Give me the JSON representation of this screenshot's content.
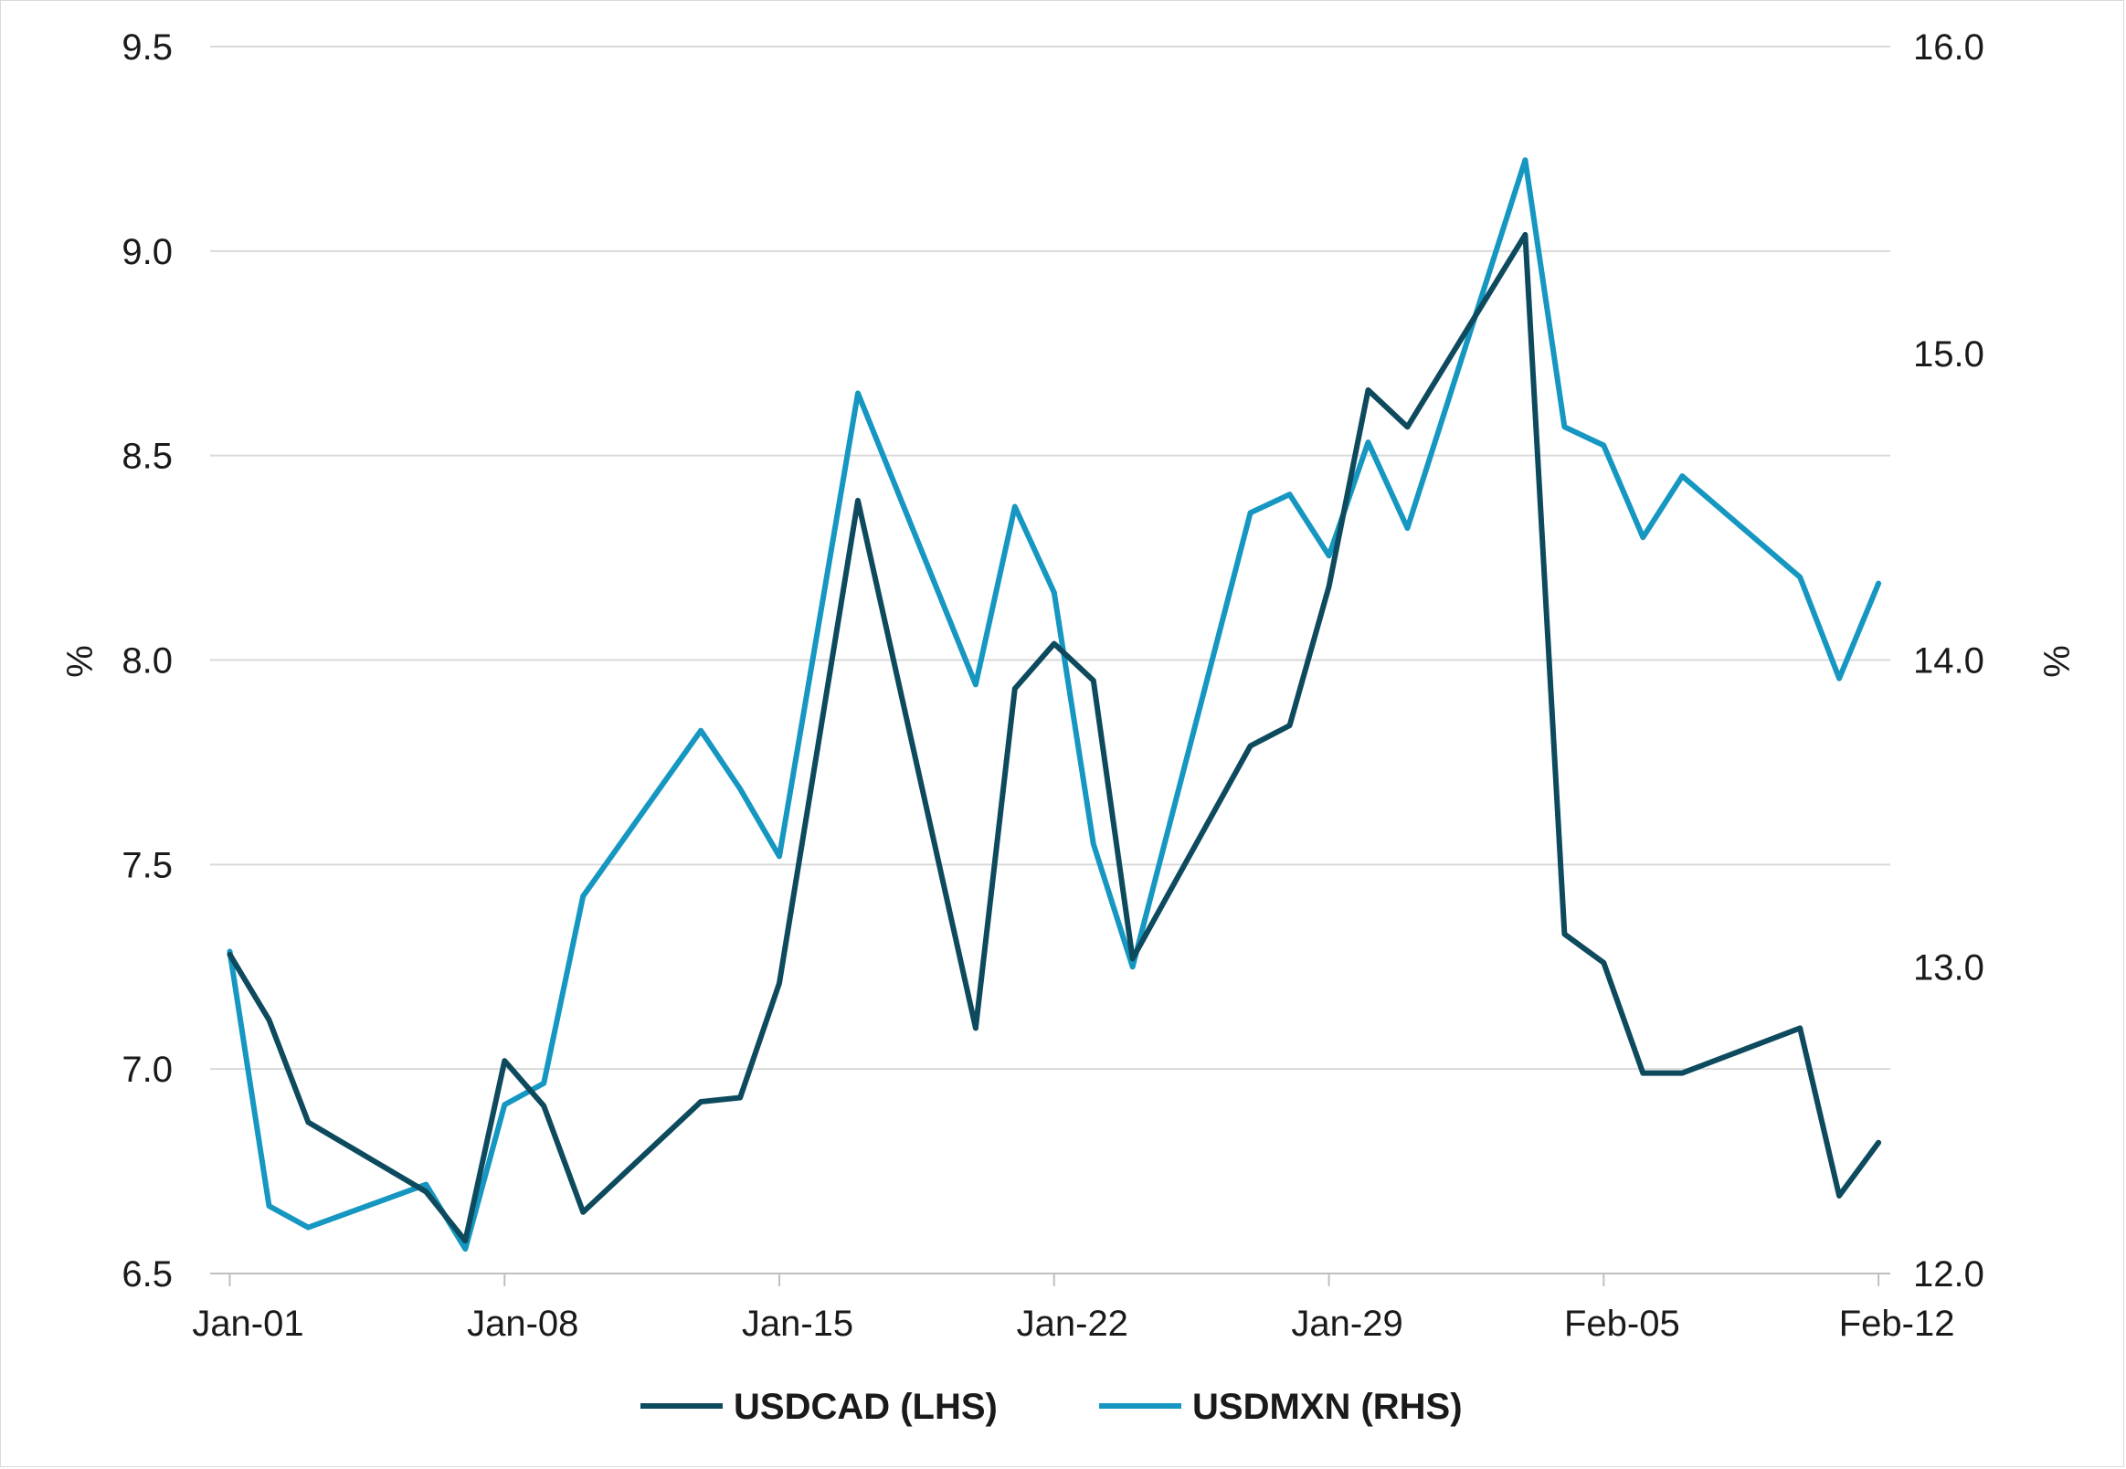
{
  "chart_data": {
    "type": "line",
    "xlabel": "",
    "y_left_label": "%",
    "y_right_label": "%",
    "y_left_lim": [
      6.5,
      9.5
    ],
    "y_right_lim": [
      12.0,
      16.0
    ],
    "y_left_ticks": [
      "6.5",
      "7.0",
      "7.5",
      "8.0",
      "8.5",
      "9.0",
      "9.5"
    ],
    "y_right_ticks": [
      "12.0",
      "13.0",
      "14.0",
      "15.0",
      "16.0"
    ],
    "x_tick_labels": [
      "Jan-01",
      "Jan-08",
      "Jan-15",
      "Jan-22",
      "Jan-29",
      "Feb-05",
      "Feb-12"
    ],
    "x_tick_days": [
      1,
      8,
      15,
      22,
      29,
      36,
      43
    ],
    "x_lim_days": [
      0.5,
      43.3
    ],
    "grid": true,
    "legend_position": "bottom",
    "series": [
      {
        "name": "USDCAD (LHS)",
        "axis": "left",
        "color": "#0d4a5e",
        "x": [
          1,
          2,
          3,
          6,
          7,
          8,
          9,
          10,
          13,
          14,
          15,
          17,
          20,
          21,
          22,
          23,
          24,
          27,
          28,
          29,
          30,
          31,
          34,
          35,
          36,
          37,
          38,
          41,
          42,
          43
        ],
        "y": [
          7.28,
          7.12,
          6.87,
          6.7,
          6.58,
          7.02,
          6.91,
          6.65,
          6.92,
          6.93,
          7.21,
          8.39,
          7.1,
          7.93,
          8.04,
          7.95,
          7.27,
          7.79,
          7.84,
          8.18,
          8.66,
          8.57,
          9.04,
          7.33,
          7.26,
          6.99,
          6.99,
          7.1,
          6.69,
          6.82
        ]
      },
      {
        "name": "USDMXN (RHS)",
        "axis": "right",
        "color": "#1597c2",
        "x": [
          1,
          2,
          3,
          6,
          7,
          8,
          9,
          10,
          13,
          14,
          15,
          17,
          20,
          21,
          22,
          23,
          24,
          27,
          28,
          29,
          30,
          31,
          34,
          35,
          36,
          37,
          38,
          41,
          42,
          43
        ],
        "y": [
          13.05,
          12.22,
          12.15,
          12.29,
          12.08,
          12.55,
          12.62,
          13.23,
          13.77,
          13.58,
          13.36,
          14.87,
          13.92,
          14.5,
          14.22,
          13.4,
          13.0,
          14.48,
          14.54,
          14.34,
          14.71,
          14.43,
          15.63,
          14.76,
          14.7,
          14.4,
          14.6,
          14.27,
          13.94,
          14.25
        ]
      }
    ]
  }
}
